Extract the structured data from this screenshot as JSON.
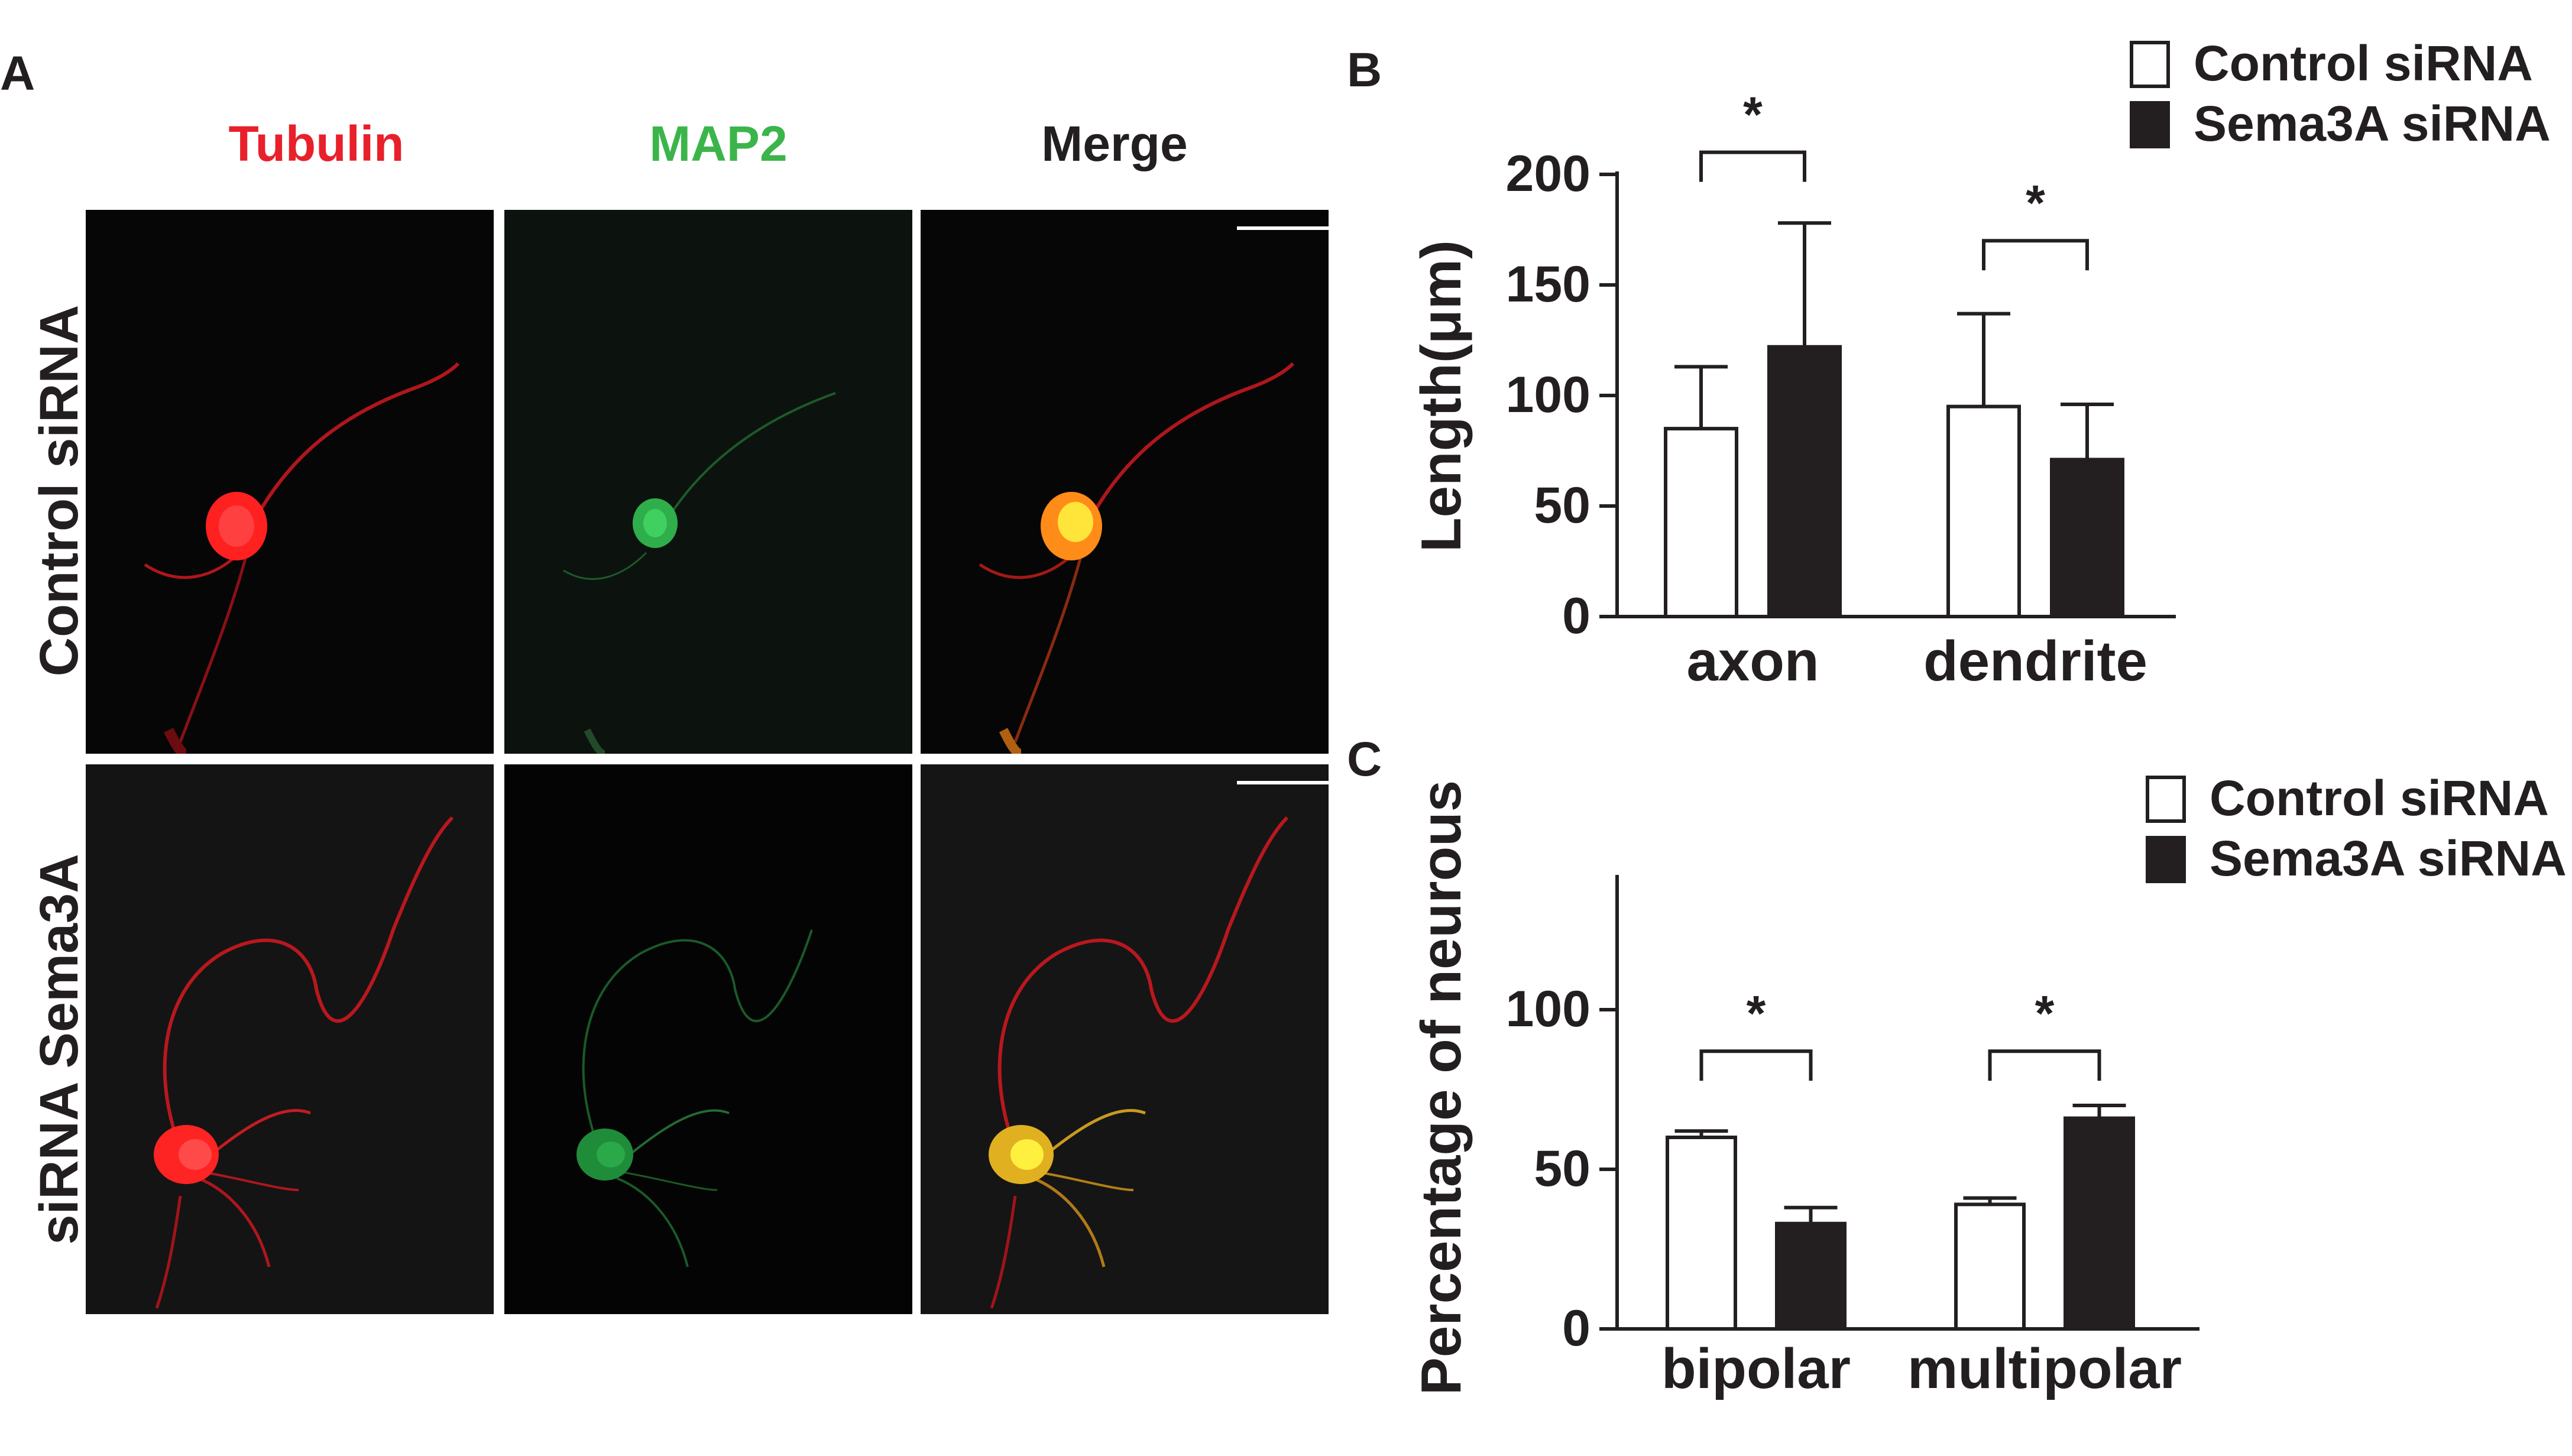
{
  "figure": {
    "panel_labels": {
      "a": "A",
      "b": "B",
      "c": "C"
    },
    "columns": [
      {
        "label": "Tubulin",
        "color": "#e8202a"
      },
      {
        "label": "MAP2",
        "color": "#3bb54a"
      },
      {
        "label": "Merge",
        "color": "#231f20"
      }
    ],
    "rows": [
      {
        "label": "Control  siRNA"
      },
      {
        "label": "siRNA Sema3A"
      }
    ]
  },
  "chart_data": [
    {
      "type": "bar",
      "panel": "B",
      "ylabel": "Length(μm)",
      "categories": [
        "axon",
        "dendrite"
      ],
      "ylim": [
        0,
        200
      ],
      "yticks": [
        0,
        50,
        100,
        150,
        200
      ],
      "series": [
        {
          "name": "Control siRNA",
          "fill": "#ffffff",
          "values": [
            85,
            95
          ],
          "errors": [
            28,
            42
          ]
        },
        {
          "name": "Sema3A siRNA",
          "fill": "#231f20",
          "values": [
            122,
            71
          ],
          "errors": [
            56,
            25
          ]
        }
      ],
      "significance": [
        {
          "category": 0,
          "label": "*",
          "bracket_y": 210
        },
        {
          "category": 1,
          "label": "*",
          "bracket_y": 170
        }
      ],
      "legend_position": "top-right",
      "grid": false
    },
    {
      "type": "bar",
      "panel": "C",
      "ylabel": "Percentage of neurous",
      "categories": [
        "bipolar",
        "multipolar"
      ],
      "ylim": [
        0,
        120
      ],
      "yticks": [
        0,
        50,
        100
      ],
      "series": [
        {
          "name": "Control siRNA",
          "fill": "#ffffff",
          "values": [
            60,
            39
          ],
          "errors": [
            2,
            2
          ]
        },
        {
          "name": "Sema3A siRNA",
          "fill": "#231f20",
          "values": [
            33,
            66
          ],
          "errors": [
            5,
            4
          ]
        }
      ],
      "significance": [
        {
          "category": 0,
          "label": "*",
          "bracket_y": 87
        },
        {
          "category": 1,
          "label": "*",
          "bracket_y": 87
        }
      ],
      "legend_position": "top-right",
      "grid": false
    }
  ]
}
